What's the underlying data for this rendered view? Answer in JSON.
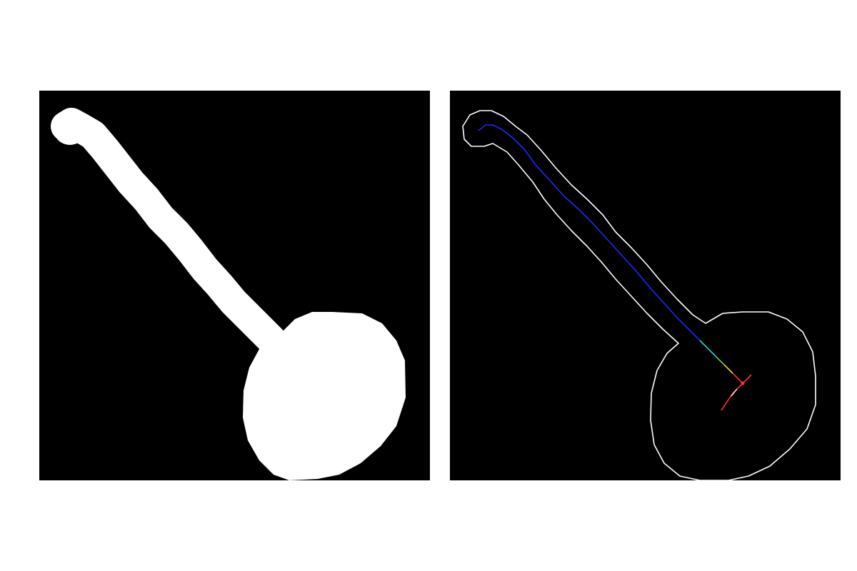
{
  "figure": {
    "background_color": "#ffffff",
    "panels": [
      {
        "name": "binary-mask",
        "background_color": "#000000",
        "shape_color": "#ffffff"
      },
      {
        "name": "contour-skeleton",
        "background_color": "#000000",
        "contour_color": "#ffffff",
        "skeleton_colors": [
          "#1a2cff",
          "#2f7dff",
          "#3ad0d0",
          "#7ad23a",
          "#e8e23a",
          "#ff3030"
        ]
      }
    ]
  }
}
